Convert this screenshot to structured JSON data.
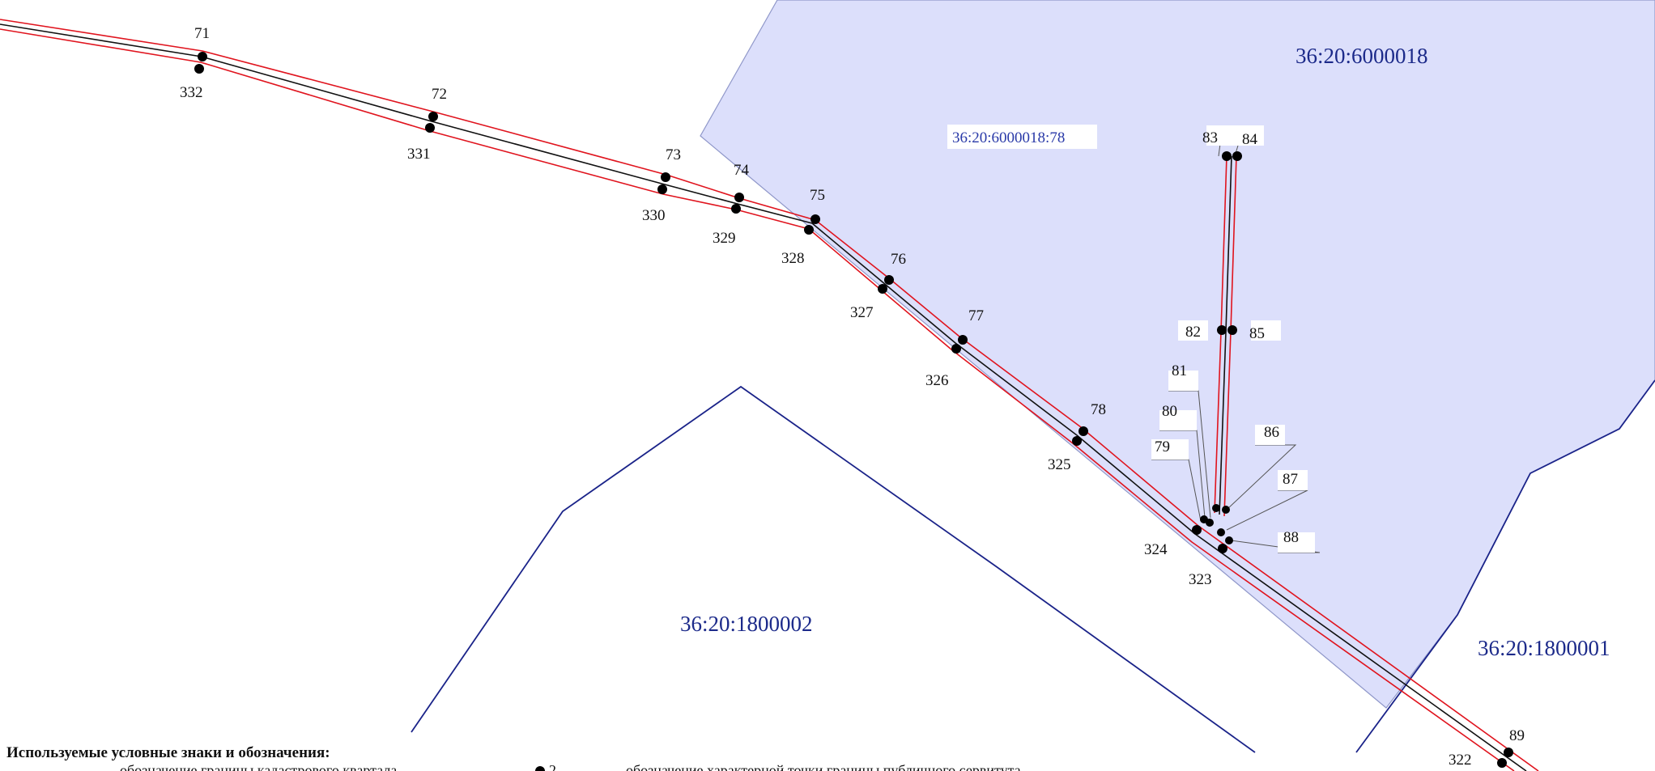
{
  "quarters": [
    {
      "id": "q1",
      "label": "36:20:6000018"
    },
    {
      "id": "q2",
      "label": "36:20:1800002"
    },
    {
      "id": "q3",
      "label": "36:20:1800001"
    }
  ],
  "parcel": {
    "label": "36:20:6000018:78"
  },
  "points": {
    "upper": [
      "71",
      "72",
      "73",
      "74",
      "75",
      "76",
      "77",
      "78",
      "79",
      "80",
      "81",
      "82",
      "83",
      "84",
      "85",
      "86",
      "87",
      "88",
      "89"
    ],
    "lower": [
      "332",
      "331",
      "330",
      "329",
      "328",
      "327",
      "326",
      "325",
      "324",
      "323",
      "322"
    ]
  },
  "legend": {
    "title": "Используемые условные знаки и обозначения:",
    "item1_text": "обозначение границы кадастрового квартала",
    "item2_symbol": "2",
    "item2_text": "обозначение характерной точки границы публичного сервитута"
  },
  "colors": {
    "parcel_fill": "#dcdffb",
    "parcel_edge": "#8f97c9",
    "quarter_border": "#1a2389",
    "line_red": "#e0141e",
    "line_black": "#111111",
    "quarter_text": "#1c2a8a",
    "parcel_text": "#2a3aa8"
  }
}
